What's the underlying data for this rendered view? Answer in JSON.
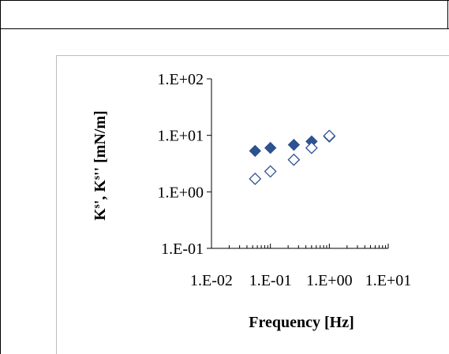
{
  "chart_data": {
    "type": "scatter",
    "title": "",
    "xlabel": "Frequency  [Hz]",
    "ylabel_parts": [
      "K",
      "s",
      "', K",
      "s",
      "''  [mN/m]"
    ],
    "xscale": "log",
    "yscale": "log",
    "xlim": [
      0.01,
      10
    ],
    "ylim": [
      0.1,
      100
    ],
    "x_tick_labels": [
      "1.E-02",
      "1.E-01",
      "1.E+00",
      "1.E+01"
    ],
    "y_tick_labels": [
      "1.E-01",
      "1.E+00",
      "1.E+01",
      "1.E+02"
    ],
    "x_tick_values": [
      0.01,
      0.1,
      1,
      10
    ],
    "y_tick_values": [
      0.1,
      1,
      10,
      100
    ],
    "grid": false,
    "legend": "none",
    "series": [
      {
        "marker": "filled-diamond",
        "color": "#2E528F",
        "x": [
          0.055,
          0.1,
          0.25,
          0.5,
          1.0
        ],
        "y": [
          5.3,
          6.0,
          6.8,
          7.8,
          9.5
        ]
      },
      {
        "marker": "open-diamond",
        "color": "#2E528F",
        "x": [
          0.055,
          0.1,
          0.25,
          0.5,
          1.0
        ],
        "y": [
          1.7,
          2.3,
          3.7,
          6.0,
          9.8
        ]
      }
    ]
  }
}
